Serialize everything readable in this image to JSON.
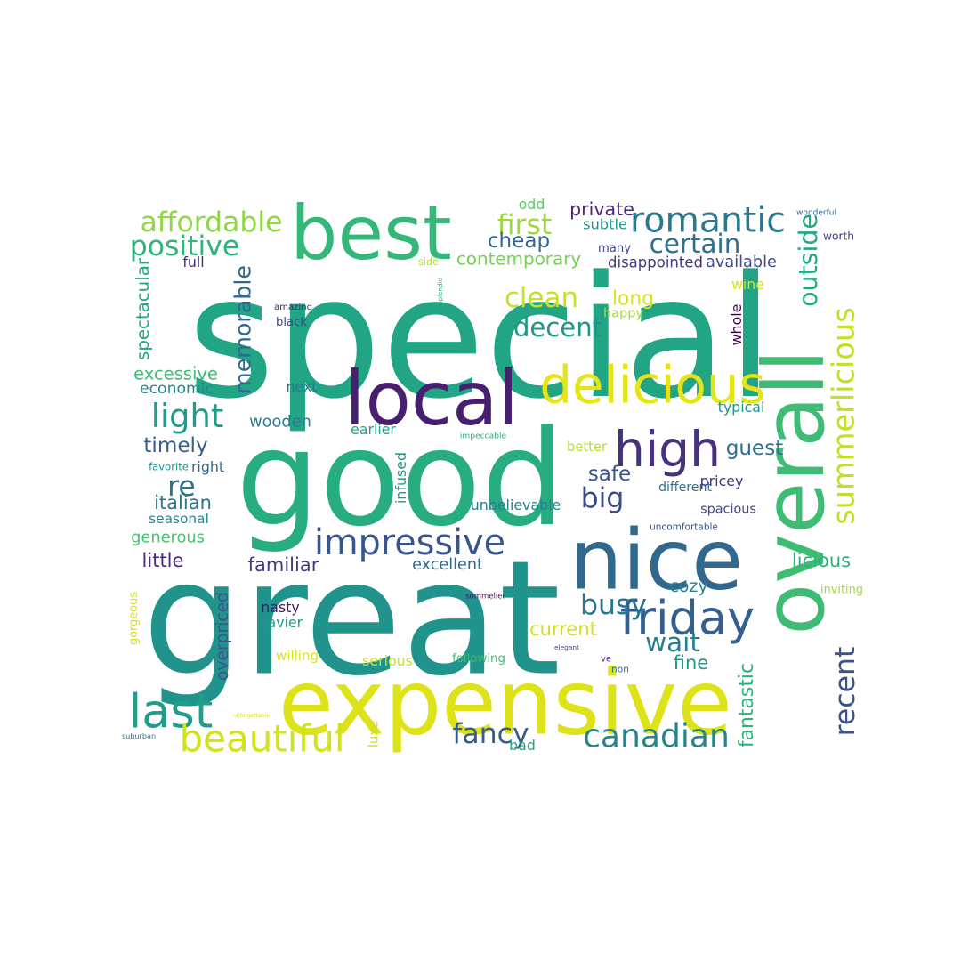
{
  "palette": {
    "dark_purple": "#440154",
    "indigo": "#3b528b",
    "blue": "#2c728e",
    "teal": "#21918c",
    "green": "#28ae80",
    "lime": "#5ec962",
    "yellow": "#d8e219"
  },
  "words": [
    {
      "text": "special",
      "color": "#21a585"
    },
    {
      "text": "great",
      "color": "#20938c"
    },
    {
      "text": "good",
      "color": "#27ad81"
    },
    {
      "text": "overall",
      "color": "#3fbc73"
    },
    {
      "text": "expensive",
      "color": "#dde318"
    },
    {
      "text": "nice",
      "color": "#31688e"
    },
    {
      "text": "best",
      "color": "#35b779"
    },
    {
      "text": "local",
      "color": "#481f70"
    },
    {
      "text": "delicious",
      "color": "#e5e419"
    },
    {
      "text": "high",
      "color": "#46327e"
    },
    {
      "text": "friday",
      "color": "#355f8d"
    },
    {
      "text": "summerlicious",
      "color": "#c2df23"
    },
    {
      "text": "romantic",
      "color": "#2a788e"
    },
    {
      "text": "canadian",
      "color": "#25858e"
    },
    {
      "text": "last",
      "color": "#1f9e89"
    },
    {
      "text": "beautiful",
      "color": "#d2e21b"
    },
    {
      "text": "impressive",
      "color": "#39568c"
    },
    {
      "text": "affordable",
      "color": "#8fd744"
    },
    {
      "text": "positive",
      "color": "#2fb47c"
    },
    {
      "text": "light",
      "color": "#1e9c89"
    },
    {
      "text": "memorable",
      "color": "#31678e"
    },
    {
      "text": "decent",
      "color": "#1f958b"
    },
    {
      "text": "clean",
      "color": "#cae11f"
    },
    {
      "text": "first",
      "color": "#9dd93b"
    },
    {
      "text": "certain",
      "color": "#2d708e"
    },
    {
      "text": "outside",
      "color": "#22a884"
    },
    {
      "text": "recent",
      "color": "#3b528b"
    },
    {
      "text": "spacious",
      "color": "#414487"
    },
    {
      "text": "big",
      "color": "#3e4989"
    },
    {
      "text": "busy",
      "color": "#2a768e"
    },
    {
      "text": "wait",
      "color": "#277f8e"
    },
    {
      "text": "favorite",
      "color": "#218f8d"
    },
    {
      "text": "re",
      "color": "#2c728e"
    },
    {
      "text": "generous",
      "color": "#4ac16d"
    },
    {
      "text": "fancy",
      "color": "#365c8d"
    },
    {
      "text": "spectacular",
      "color": "#22a785"
    },
    {
      "text": "overpriced",
      "color": "#3a548c"
    },
    {
      "text": "fantastic",
      "color": "#2eb37c"
    },
    {
      "text": "gorgeous",
      "color": "#d8e219"
    },
    {
      "text": "cheap",
      "color": "#31688e"
    },
    {
      "text": "contemporary",
      "color": "#75d054"
    },
    {
      "text": "disappointed",
      "color": "#453781"
    },
    {
      "text": "available",
      "color": "#3e4a89"
    },
    {
      "text": "private",
      "color": "#482878"
    },
    {
      "text": "subtle",
      "color": "#1f988b"
    },
    {
      "text": "long",
      "color": "#dae319"
    },
    {
      "text": "safe",
      "color": "#3b528b"
    },
    {
      "text": "different",
      "color": "#2c718e"
    },
    {
      "text": "guest",
      "color": "#2d708e"
    },
    {
      "text": "wooden",
      "color": "#297b8e"
    },
    {
      "text": "timely",
      "color": "#355e8d"
    },
    {
      "text": "excessive",
      "color": "#3dbc74"
    },
    {
      "text": "economic",
      "color": "#23888e"
    },
    {
      "text": "italian",
      "color": "#2a788e"
    },
    {
      "text": "seasonal",
      "color": "#24868e"
    },
    {
      "text": "little",
      "color": "#472d7b"
    },
    {
      "text": "familiar",
      "color": "#443a83"
    },
    {
      "text": "excellent",
      "color": "#306a8e"
    },
    {
      "text": "licious",
      "color": "#2db27d"
    },
    {
      "text": "inviting",
      "color": "#9fda3a"
    },
    {
      "text": "cozy",
      "color": "#25848e"
    },
    {
      "text": "current",
      "color": "#d0e11c"
    },
    {
      "text": "willing",
      "color": "#dde318"
    },
    {
      "text": "fine",
      "color": "#1e9b8a"
    },
    {
      "text": "suburban",
      "color": "#2b748e"
    },
    {
      "text": "bad",
      "color": "#22a785"
    },
    {
      "text": "unforgettable",
      "color": "#e2e418"
    },
    {
      "text": "luxe",
      "color": "#c8e020"
    },
    {
      "text": "odd",
      "color": "#5ec962"
    },
    {
      "text": "wonderful",
      "color": "#31688e"
    },
    {
      "text": "worth",
      "color": "#46317e"
    },
    {
      "text": "many",
      "color": "#404688"
    },
    {
      "text": "side",
      "color": "#bade28"
    },
    {
      "text": "full",
      "color": "#472c7a"
    },
    {
      "text": "splendid",
      "color": "#2ab07f"
    },
    {
      "text": "wine",
      "color": "#d5e21a"
    },
    {
      "text": "happy",
      "color": "#a5db36"
    },
    {
      "text": "whole",
      "color": "#440154"
    },
    {
      "text": "amazing",
      "color": "#482475"
    },
    {
      "text": "black",
      "color": "#3e4989"
    },
    {
      "text": "next",
      "color": "#2a788e"
    },
    {
      "text": "typical",
      "color": "#1f948c"
    },
    {
      "text": "earlier",
      "color": "#20a386"
    },
    {
      "text": "impeccable",
      "color": "#28ae80"
    },
    {
      "text": "better",
      "color": "#b5de2b"
    },
    {
      "text": "right",
      "color": "#31688e"
    },
    {
      "text": "pricey",
      "color": "#46317e"
    },
    {
      "text": "infused",
      "color": "#1f998a"
    },
    {
      "text": "unbelievable",
      "color": "#277f8e"
    },
    {
      "text": "uncomfortable",
      "color": "#3b528b"
    },
    {
      "text": "sommelier",
      "color": "#471164"
    },
    {
      "text": "nasty",
      "color": "#481769"
    },
    {
      "text": "cavier",
      "color": "#1e9b8a"
    },
    {
      "text": "serious",
      "color": "#d0e11c"
    },
    {
      "text": "following",
      "color": "#3fbc73"
    },
    {
      "text": "elegant",
      "color": "#433e85"
    },
    {
      "text": "non",
      "color": "#2e6e8e"
    },
    {
      "text": "ve",
      "color": "#481f70"
    },
    {
      "text": "·",
      "color": "#e7e419"
    }
  ]
}
